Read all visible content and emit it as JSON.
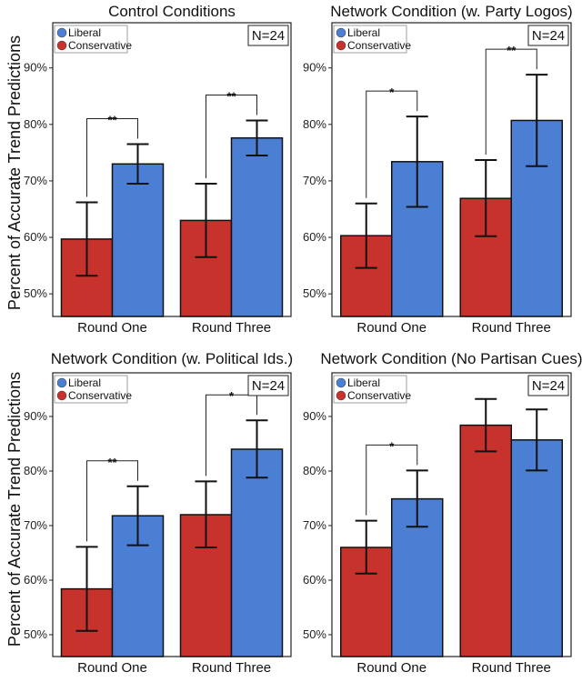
{
  "ylabel": "Percent of Accurate Trend Predictions",
  "legend": [
    "Liberal",
    "Conservative"
  ],
  "colors": {
    "Liberal": "#4a7fd4",
    "Conservative": "#c8322c"
  },
  "chart_data": [
    {
      "type": "bar",
      "title": "Control Conditions",
      "n_label": "N=24",
      "categories": [
        "Round One",
        "Round Three"
      ],
      "ylim": [
        46,
        98
      ],
      "yticks": [
        "50%",
        "60%",
        "70%",
        "80%",
        "90%"
      ],
      "series": [
        {
          "name": "Conservative",
          "values": [
            59.7,
            63.0
          ],
          "err_low": [
            53.2,
            56.5
          ],
          "err_high": [
            66.2,
            69.5
          ]
        },
        {
          "name": "Liberal",
          "values": [
            73.0,
            77.6
          ],
          "err_low": [
            69.5,
            74.5
          ],
          "err_high": [
            76.5,
            80.7
          ]
        }
      ],
      "significance": [
        "**",
        "**"
      ]
    },
    {
      "type": "bar",
      "title": "Network Condition (w. Party Logos)",
      "n_label": "N=24",
      "categories": [
        "Round One",
        "Round Three"
      ],
      "ylim": [
        46,
        98
      ],
      "yticks": [
        "50%",
        "60%",
        "70%",
        "80%",
        "90%"
      ],
      "series": [
        {
          "name": "Conservative",
          "values": [
            60.3,
            66.9
          ],
          "err_low": [
            54.6,
            60.2
          ],
          "err_high": [
            66.0,
            73.7
          ]
        },
        {
          "name": "Liberal",
          "values": [
            73.4,
            80.7
          ],
          "err_low": [
            65.4,
            72.6
          ],
          "err_high": [
            81.4,
            88.8
          ]
        }
      ],
      "significance": [
        "*",
        "**"
      ]
    },
    {
      "type": "bar",
      "title": "Network Condition (w. Political Ids.)",
      "n_label": "N=24",
      "categories": [
        "Round One",
        "Round Three"
      ],
      "ylim": [
        46,
        98
      ],
      "yticks": [
        "50%",
        "60%",
        "70%",
        "80%",
        "90%"
      ],
      "series": [
        {
          "name": "Conservative",
          "values": [
            58.4,
            72.0
          ],
          "err_low": [
            50.7,
            66.0
          ],
          "err_high": [
            66.1,
            78.1
          ]
        },
        {
          "name": "Liberal",
          "values": [
            71.8,
            84.0
          ],
          "err_low": [
            66.4,
            78.8
          ],
          "err_high": [
            77.2,
            89.3
          ]
        }
      ],
      "significance": [
        "**",
        "*"
      ]
    },
    {
      "type": "bar",
      "title": "Network Condition (No Partisan Cues)",
      "n_label": "N=24",
      "categories": [
        "Round One",
        "Round Three"
      ],
      "ylim": [
        46,
        98
      ],
      "yticks": [
        "50%",
        "60%",
        "70%",
        "80%",
        "90%"
      ],
      "series": [
        {
          "name": "Conservative",
          "values": [
            66.0,
            88.4
          ],
          "err_low": [
            61.2,
            83.6
          ],
          "err_high": [
            70.9,
            93.2
          ]
        },
        {
          "name": "Liberal",
          "values": [
            74.9,
            85.7
          ],
          "err_low": [
            69.8,
            80.1
          ],
          "err_high": [
            80.1,
            91.3
          ]
        }
      ],
      "significance": [
        "*",
        ""
      ]
    }
  ]
}
